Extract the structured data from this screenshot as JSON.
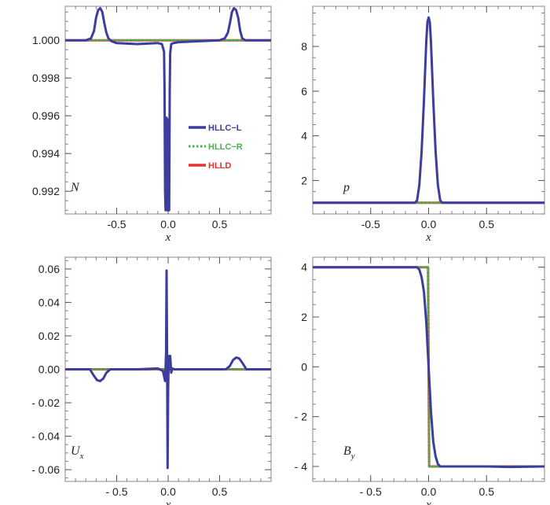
{
  "colors": {
    "hllc_l": "#3d3d9e",
    "hllc_r": "#4caf50",
    "hlld": "#e53030",
    "frame": "#9a8080"
  },
  "legend": [
    {
      "label": "HLLC−L",
      "color": "#3d3d9e",
      "style": "solid"
    },
    {
      "label": "HLLC−R",
      "color": "#4caf50",
      "style": "dotted"
    },
    {
      "label": "HLLD",
      "color": "#e53030",
      "style": "solid"
    }
  ],
  "chart_data": [
    {
      "type": "line",
      "label": "N",
      "label_sub": "",
      "xlabel": "x",
      "xlim": [
        -1,
        1
      ],
      "ylim": [
        0.9908,
        1.0018
      ],
      "xticks": [
        -0.5,
        0.0,
        0.5
      ],
      "xtick_labels": [
        "-0.5",
        "0.0",
        "0.5"
      ],
      "yticks": [
        0.992,
        0.994,
        0.996,
        0.998,
        1.0
      ],
      "ytick_labels": [
        "0.992",
        "0.994",
        "0.996",
        "0.998",
        "1.000"
      ],
      "series": [
        {
          "name": "HLLD",
          "x": [
            -1,
            1
          ],
          "y": [
            1.0,
            1.0
          ]
        },
        {
          "name": "HLLC−R",
          "x": [
            -1,
            1
          ],
          "y": [
            1.0,
            1.0
          ]
        },
        {
          "name": "HLLC−L",
          "x": [
            -1,
            -0.8,
            -0.75,
            -0.72,
            -0.7,
            -0.68,
            -0.66,
            -0.64,
            -0.62,
            -0.6,
            -0.58,
            -0.55,
            -0.5,
            -0.3,
            -0.1,
            -0.06,
            -0.04,
            -0.035,
            -0.03,
            -0.025,
            -0.02,
            -0.015,
            -0.01,
            -0.005,
            0.0,
            0.005,
            0.01,
            0.015,
            0.02,
            0.03,
            0.05,
            0.1,
            0.3,
            0.5,
            0.55,
            0.58,
            0.6,
            0.62,
            0.64,
            0.66,
            0.68,
            0.7,
            0.72,
            0.75,
            0.8,
            1
          ],
          "y": [
            1.0,
            1.0,
            1.0001,
            1.0005,
            1.0012,
            1.0016,
            1.0017,
            1.0015,
            1.0009,
            1.0004,
            1.0001,
            0.99995,
            0.99985,
            0.9998,
            0.99985,
            0.9998,
            0.9994,
            0.9975,
            0.992,
            0.991,
            0.9958,
            0.9959,
            0.991,
            0.991,
            0.9958,
            0.991,
            0.991,
            0.9972,
            0.9993,
            0.9998,
            0.99985,
            0.9999,
            0.99995,
            1.0,
            1.0001,
            1.0004,
            1.0009,
            1.0015,
            1.0017,
            1.0016,
            1.0012,
            1.0005,
            1.0001,
            1.0,
            1.0,
            1.0
          ]
        }
      ]
    },
    {
      "type": "line",
      "label": "p",
      "label_sub": "",
      "xlabel": "x",
      "xlim": [
        -1,
        1
      ],
      "ylim": [
        0.5,
        9.8
      ],
      "xticks": [
        -0.5,
        0.0,
        0.5
      ],
      "xtick_labels": [
        "-0.5",
        "0.0",
        "0.5"
      ],
      "yticks": [
        2,
        4,
        6,
        8
      ],
      "ytick_labels": [
        "2",
        "4",
        "6",
        "8"
      ],
      "series": [
        {
          "name": "HLLD",
          "x": [
            -1,
            1
          ],
          "y": [
            1.0,
            1.0
          ]
        },
        {
          "name": "HLLC−R",
          "x": [
            -1,
            1
          ],
          "y": [
            1.0,
            1.0
          ]
        },
        {
          "name": "HLLC−L",
          "x": [
            -1,
            -0.12,
            -0.1,
            -0.08,
            -0.06,
            -0.04,
            -0.02,
            -0.01,
            0.0,
            0.01,
            0.02,
            0.04,
            0.06,
            0.08,
            0.1,
            0.12,
            1
          ],
          "y": [
            1.0,
            1.0,
            1.1,
            1.8,
            3.3,
            5.6,
            8.2,
            9.1,
            9.3,
            9.1,
            8.2,
            5.6,
            3.3,
            1.8,
            1.1,
            1.0,
            1.0
          ]
        }
      ]
    },
    {
      "type": "line",
      "label": "U",
      "label_sub": "x",
      "xlabel": "x",
      "xlim": [
        -1,
        1
      ],
      "ylim": [
        -0.067,
        0.067
      ],
      "xticks": [
        -0.5,
        0.0,
        0.5
      ],
      "xtick_labels": [
        "- 0.5",
        "0.0",
        "0.5"
      ],
      "yticks": [
        -0.06,
        -0.04,
        -0.02,
        0.0,
        0.02,
        0.04,
        0.06
      ],
      "ytick_labels": [
        "- 0.06",
        "- 0.04",
        "- 0.02",
        "0.00",
        "0.02",
        "0.04",
        "0.06"
      ],
      "series": [
        {
          "name": "HLLD",
          "x": [
            -1,
            1
          ],
          "y": [
            0.0,
            0.0
          ]
        },
        {
          "name": "HLLC−R",
          "x": [
            -1,
            1
          ],
          "y": [
            0.0,
            0.0
          ]
        },
        {
          "name": "HLLC−L",
          "x": [
            -1,
            -0.76,
            -0.72,
            -0.69,
            -0.66,
            -0.63,
            -0.6,
            -0.56,
            -0.3,
            -0.1,
            -0.05,
            -0.03,
            -0.02,
            -0.015,
            -0.01,
            -0.005,
            0.0,
            0.005,
            0.01,
            0.015,
            0.02,
            0.03,
            0.04,
            0.06,
            0.3,
            0.56,
            0.6,
            0.63,
            0.66,
            0.69,
            0.72,
            0.76,
            1
          ],
          "y": [
            0.0,
            0.0,
            -0.004,
            -0.0065,
            -0.007,
            -0.0055,
            -0.002,
            0.0,
            0.0,
            0.0005,
            -0.001,
            -0.007,
            0.01,
            0.059,
            0.005,
            -0.059,
            -0.012,
            0.006,
            0.008,
            0.004,
            0.008,
            -0.002,
            0.0005,
            0.0,
            0.0,
            0.0,
            0.002,
            0.0055,
            0.007,
            0.0065,
            0.004,
            0.0,
            0.0
          ]
        }
      ]
    },
    {
      "type": "line",
      "label": "B",
      "label_sub": "y",
      "xlabel": "x",
      "xlim": [
        -1,
        1
      ],
      "ylim": [
        -4.6,
        4.4
      ],
      "xticks": [
        -0.5,
        0.0,
        0.5
      ],
      "xtick_labels": [
        "- 0.5",
        "0.0",
        "0.5"
      ],
      "yticks": [
        -4,
        -2,
        0,
        2,
        4
      ],
      "ytick_labels": [
        "- 4",
        "- 2",
        "0",
        "2",
        "4"
      ],
      "series": [
        {
          "name": "HLLD",
          "x": [
            -1,
            -0.005,
            0.005,
            1
          ],
          "y": [
            4.0,
            4.0,
            -4.0,
            -4.0
          ]
        },
        {
          "name": "HLLC−R",
          "x": [
            -1,
            -0.005,
            0.005,
            1
          ],
          "y": [
            4.0,
            4.0,
            -4.0,
            -4.0
          ]
        },
        {
          "name": "HLLC−L",
          "x": [
            -1,
            -0.1,
            -0.08,
            -0.06,
            -0.04,
            -0.02,
            0.0,
            0.02,
            0.04,
            0.06,
            0.08,
            0.1,
            0.12,
            0.5,
            0.7,
            1
          ],
          "y": [
            4.0,
            4.0,
            3.9,
            3.6,
            3.0,
            1.8,
            0.0,
            -1.8,
            -3.0,
            -3.6,
            -3.9,
            -4.0,
            -4.0,
            -4.0,
            -4.02,
            -4.0
          ]
        }
      ]
    }
  ]
}
